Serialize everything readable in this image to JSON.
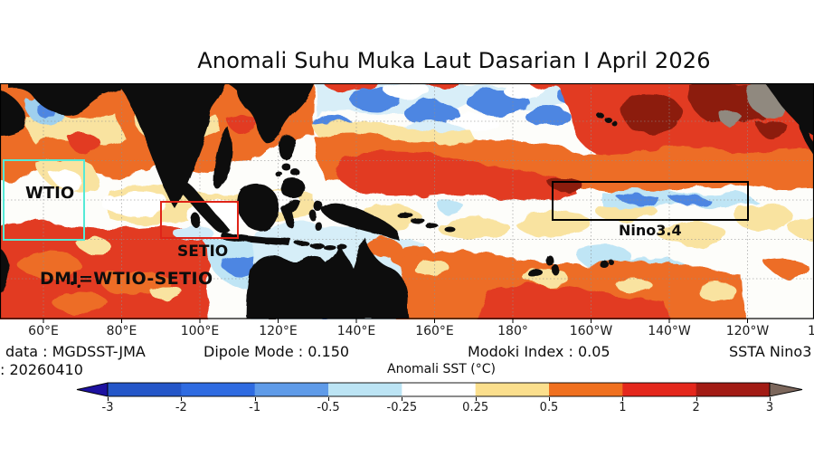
{
  "title": "Anomali Suhu Muka Laut Dasarian I April 2026",
  "map": {
    "regions": [
      {
        "id": "wtio",
        "label": "WTIO",
        "box_color": "#55e9d6"
      },
      {
        "id": "setio",
        "label": "SETIO",
        "box_color": "#e02418"
      },
      {
        "id": "nino34",
        "label": "Nino3.4",
        "box_color": "#000000"
      }
    ],
    "annotation": "DMI=WTIO-SETIO"
  },
  "x_axis": {
    "ticks": [
      "60°E",
      "80°E",
      "100°E",
      "120°E",
      "140°E",
      "160°E",
      "180°",
      "160°W",
      "140°W",
      "120°W"
    ],
    "partial_tick": "1"
  },
  "footer": {
    "data_source": "data : MGDSST-JMA",
    "date": ": 20260410",
    "dipole": "Dipole Mode : 0.150",
    "modoki": "Modoki Index : 0.05",
    "ssta": "SSTA Nino3"
  },
  "colorbar": {
    "label": "Anomali SST (°C)",
    "ticks": [
      "-3",
      "-2",
      "-1",
      "-0.5",
      "-0.25",
      "0.25",
      "0.5",
      "1",
      "2",
      "3"
    ],
    "colors": [
      "#2456c8",
      "#2f6be1",
      "#5f9be8",
      "#bce4f4",
      "#ffffff",
      "#fbdf8d",
      "#f0701f",
      "#e4271c",
      "#a21b14"
    ],
    "under_color": "#1d11a0",
    "over_color": "#7c675c"
  },
  "chart_data": {
    "type": "heatmap",
    "title": "Anomali Suhu Muka Laut Dasarian I April 2026",
    "units": "°C",
    "colorbar_label": "Anomali SST (°C)",
    "colorbar_ticks": [
      -3,
      -2,
      -1,
      -0.5,
      -0.25,
      0.25,
      0.5,
      1,
      2,
      3
    ],
    "x_ticks": [
      "60°E",
      "80°E",
      "100°E",
      "120°E",
      "140°E",
      "160°E",
      "180°",
      "160°W",
      "140°W",
      "120°W"
    ],
    "region_boxes": [
      {
        "name": "WTIO",
        "approx_lon": "50E-70E",
        "approx_lat": "10N-10S",
        "dominant_anomaly": "+0.5 to +1 (orange) with 0.25-0.5 patches"
      },
      {
        "name": "SETIO",
        "approx_lon": "90E-110E",
        "approx_lat": "0-10S",
        "dominant_anomaly": "+0.25 to +1 mixed with near-zero patches"
      },
      {
        "name": "Nino3.4",
        "approx_lon": "170W-120W",
        "approx_lat": "5N-5S",
        "dominant_anomaly": "west +0.5 to +1, east -0.25 to -1 (blue streak)"
      }
    ],
    "indices": {
      "dipole_mode": 0.15,
      "modoki_index": 0.05
    },
    "data_source": "MGDSST-JMA",
    "date": "20260410",
    "field_summary": [
      "Indian Ocean broadly warm (+0.5 to +2), strongest red southwest and near 60E-80E south of 20S",
      "Cool patch (-0.5 to -1) in northern Arabian Sea",
      "Weak cool/neutral band south of Indonesia and around northern Australia",
      "North-central Pacific 20N-30N cool speckled band (-0.5 to -1)",
      "Warm tongue (+0.5 to +2) across west-central Pacific 5N-15N",
      "Northeast Pacific strongly warm (+1 to >+3, dark red/gray near American coast)",
      "Equatorial east-central Pacific near neutral with weak cool streak in eastern Nino3.4",
      "South Pacific warm band (+0.5 to +2) between 15S-30S fading to neutral in far southeast"
    ]
  }
}
